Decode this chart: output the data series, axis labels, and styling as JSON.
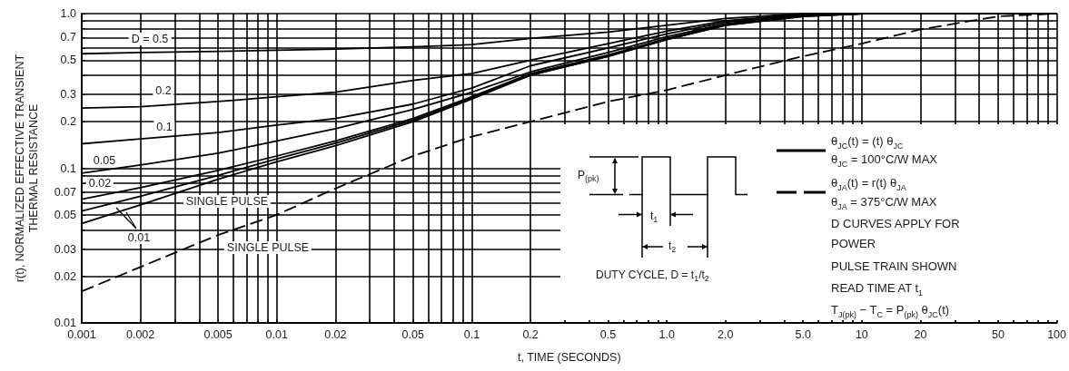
{
  "chart_data": {
    "type": "line",
    "xlabel": "t, TIME (SECONDS)",
    "ylabel": "r(t), NORMALIZED EFFECTIVE TRANSIENT\nTHERMAL RESISTANCE",
    "log": "xy",
    "grid": true,
    "marker": "none",
    "line_style": "solid",
    "xlim": [
      0.001,
      100
    ],
    "ylim": [
      0.01,
      1
    ],
    "xticks": [
      0.001,
      0.002,
      {
        "value": 0.003,
        "label": null
      },
      {
        "value": 0.004,
        "label": null
      },
      0.005,
      {
        "value": 0.006,
        "label": null
      },
      {
        "value": 0.007,
        "label": null
      },
      {
        "value": 0.008,
        "label": null
      },
      {
        "value": 0.009,
        "label": null
      },
      0.01,
      0.02,
      {
        "value": 0.03,
        "label": null
      },
      {
        "value": 0.04,
        "label": null
      },
      0.05,
      {
        "value": 0.06,
        "label": null
      },
      {
        "value": 0.07,
        "label": null
      },
      {
        "value": 0.08,
        "label": null
      },
      {
        "value": 0.09,
        "label": null
      },
      0.1,
      0.2,
      {
        "value": 0.3,
        "label": null
      },
      {
        "value": 0.4,
        "label": null
      },
      0.5,
      {
        "value": 0.6,
        "label": null
      },
      {
        "value": 0.7,
        "label": null
      },
      {
        "value": 0.8,
        "label": null
      },
      {
        "value": 0.9,
        "label": null
      },
      {
        "value": 1,
        "label": "1.0"
      },
      {
        "value": 2,
        "label": "2.0"
      },
      {
        "value": 3,
        "label": null
      },
      {
        "value": 4,
        "label": null
      },
      {
        "value": 5,
        "label": "5.0"
      },
      {
        "value": 6,
        "label": null
      },
      {
        "value": 7,
        "label": null
      },
      {
        "value": 8,
        "label": null
      },
      {
        "value": 9,
        "label": null
      },
      10,
      20,
      {
        "value": 30,
        "label": null
      },
      {
        "value": 40,
        "label": null
      },
      50,
      {
        "value": 60,
        "label": null
      },
      {
        "value": 70,
        "label": null
      },
      {
        "value": 80,
        "label": null
      },
      {
        "value": 90,
        "label": null
      },
      100
    ],
    "yticks": [
      0.01,
      0.02,
      0.03,
      {
        "value": 0.04,
        "label": null
      },
      0.05,
      {
        "value": 0.06,
        "label": null
      },
      0.07,
      {
        "value": 0.08,
        "label": null
      },
      {
        "value": 0.09,
        "label": null
      },
      0.1,
      0.2,
      0.3,
      {
        "value": 0.4,
        "label": null
      },
      0.5,
      {
        "value": 0.6,
        "label": null
      },
      0.7,
      {
        "value": 0.8,
        "label": null
      },
      {
        "value": 0.9,
        "label": null
      },
      {
        "value": 1,
        "label": "1.0"
      }
    ],
    "x": [
      0.001,
      0.002,
      0.005,
      0.01,
      0.02,
      0.05,
      0.1,
      0.2,
      0.5,
      1,
      2,
      5,
      10,
      20,
      50,
      100
    ],
    "series": [
      {
        "name": "D = 0.5",
        "color": "#000000",
        "values": [
          0.55,
          0.56,
          0.57,
          0.58,
          0.59,
          0.61,
          0.63,
          0.69,
          0.76,
          0.84,
          0.93,
          1.0,
          1.0,
          1.0,
          1.0,
          1.0
        ]
      },
      {
        "name": "0.2",
        "color": "#000000",
        "values": [
          0.245,
          0.25,
          0.27,
          0.29,
          0.31,
          0.37,
          0.41,
          0.5,
          0.64,
          0.77,
          0.9,
          0.99,
          1.0,
          1.0,
          1.0,
          1.0
        ]
      },
      {
        "name": "0.1",
        "color": "#000000",
        "values": [
          0.144,
          0.155,
          0.17,
          0.19,
          0.21,
          0.26,
          0.33,
          0.46,
          0.6,
          0.74,
          0.88,
          0.98,
          1.0,
          1.0,
          1.0,
          1.0
        ]
      },
      {
        "name": "0.05",
        "color": "#000000",
        "values": [
          0.093,
          0.105,
          0.125,
          0.15,
          0.18,
          0.24,
          0.31,
          0.42,
          0.56,
          0.71,
          0.86,
          0.97,
          1.0,
          1.0,
          1.0,
          1.0
        ]
      },
      {
        "name": "0.02",
        "color": "#000000",
        "values": [
          0.063,
          0.075,
          0.097,
          0.12,
          0.15,
          0.21,
          0.29,
          0.41,
          0.54,
          0.69,
          0.85,
          0.97,
          1.0,
          1.0,
          1.0,
          1.0
        ]
      },
      {
        "name": "0.01",
        "color": "#000000",
        "values": [
          0.053,
          0.066,
          0.09,
          0.115,
          0.145,
          0.205,
          0.285,
          0.4,
          0.53,
          0.68,
          0.84,
          0.96,
          1.0,
          1.0,
          1.0,
          1.0
        ]
      },
      {
        "name": "SINGLE PULSE",
        "color": "#000000",
        "values": [
          0.044,
          0.058,
          0.085,
          0.11,
          0.14,
          0.2,
          0.28,
          0.4,
          0.53,
          0.68,
          0.84,
          0.96,
          1.0,
          1.0,
          1.0,
          1.0
        ]
      },
      {
        "name": "SINGLE PULSE",
        "color": "#000000",
        "line_style": "dashed",
        "values": [
          0.016,
          0.023,
          0.037,
          0.05,
          0.074,
          0.12,
          0.16,
          0.2,
          0.27,
          0.32,
          0.4,
          0.53,
          0.64,
          0.79,
          0.96,
          1.0
        ]
      }
    ],
    "annotations": [
      "P$_{(pk)}$",
      "t$_{1}$",
      "t$_{2}$",
      "DUTY CYCLE, D = t$_{1}$/t$_{2}$",
      "θ$_{JC}$(t) = (t) θ$_{JC}$",
      "θ$_{JC}$ = 100°C/W MAX",
      "θ$_{JA}$(t) = r(t) θ$_{JA}$",
      "θ$_{JA}$ = 375°C/W MAX",
      "D CURVES APPLY FOR",
      "POWER",
      "PULSE TRAIN SHOWN",
      "READ TIME AT t$_{1}$",
      "T$_{J(pk)}$ − T$_{C}$ = P$_{(pk)}$ θ$_{JC}$(t)"
    ]
  }
}
